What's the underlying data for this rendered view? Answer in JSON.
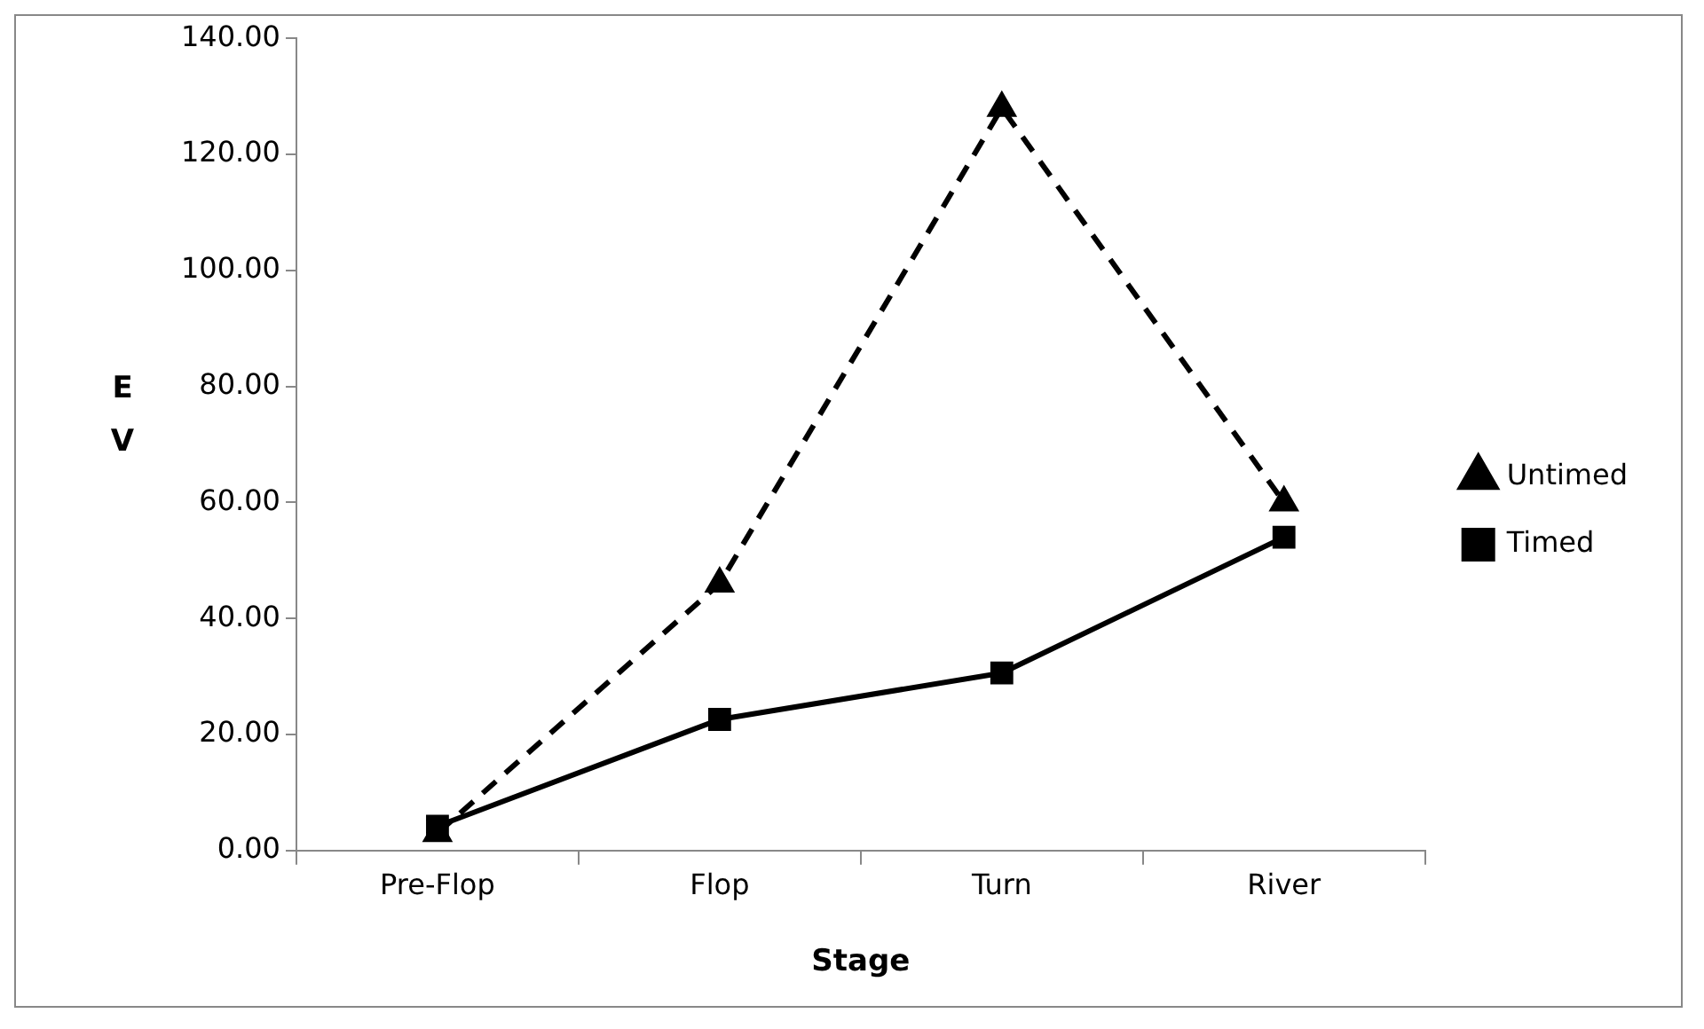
{
  "chart_data": {
    "type": "line",
    "xlabel": "Stage",
    "ylabel": "EV",
    "categories": [
      "Pre-Flop",
      "Flop",
      "Turn",
      "River"
    ],
    "series": [
      {
        "name": "Timed",
        "color": "#000000",
        "values": [
          4.2,
          22.6,
          30.6,
          54
        ],
        "marker": "square",
        "line_style": "solid"
      },
      {
        "name": "Untimed",
        "color": "#000000",
        "values": [
          3,
          46,
          128,
          60
        ],
        "marker": "triangle",
        "line_style": "dashed"
      }
    ],
    "ylim": [
      0,
      140
    ],
    "yticks": [
      {
        "value": 0,
        "label": "0.00"
      },
      {
        "value": 20,
        "label": "20.00"
      },
      {
        "value": 40,
        "label": "40.00"
      },
      {
        "value": 60,
        "label": "60.00"
      },
      {
        "value": 80,
        "label": "80.00"
      },
      {
        "value": 100,
        "label": "100.00"
      },
      {
        "value": 120,
        "label": "120.00"
      },
      {
        "value": 140,
        "label": "140.00"
      }
    ],
    "grid": false,
    "legend": "right"
  }
}
